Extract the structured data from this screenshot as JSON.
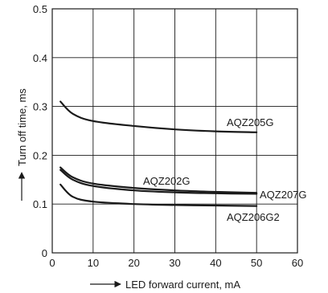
{
  "chart_data": {
    "type": "line",
    "title": "",
    "xlabel": "LED forward current, mA",
    "ylabel": "Turn off time, ms",
    "xlim": [
      0,
      60
    ],
    "ylim": [
      0,
      0.5
    ],
    "xticks": [
      0,
      10,
      20,
      30,
      40,
      50,
      60
    ],
    "yticks": [
      0,
      0.1,
      0.2,
      0.3,
      0.4,
      0.5
    ],
    "xtick_labels": [
      "0",
      "10",
      "20",
      "30",
      "40",
      "50",
      "60"
    ],
    "ytick_labels": [
      "0",
      "0.1",
      "0.2",
      "0.3",
      "0.4",
      "0.5"
    ],
    "grid": true,
    "legend": "none (series labeled inline)",
    "series": [
      {
        "name": "AQZ205G",
        "x": [
          2,
          5,
          10,
          20,
          30,
          40,
          50
        ],
        "y": [
          0.31,
          0.285,
          0.27,
          0.26,
          0.253,
          0.249,
          0.247
        ]
      },
      {
        "name": "AQZ202G",
        "x": [
          2,
          5,
          10,
          20,
          30,
          40,
          50
        ],
        "y": [
          0.175,
          0.155,
          0.142,
          0.133,
          0.128,
          0.125,
          0.123
        ]
      },
      {
        "name": "AQZ207G",
        "x": [
          2,
          5,
          10,
          20,
          30,
          40,
          50
        ],
        "y": [
          0.17,
          0.15,
          0.137,
          0.128,
          0.124,
          0.122,
          0.121
        ]
      },
      {
        "name": "AQZ206G2",
        "x": [
          2,
          5,
          10,
          20,
          30,
          40,
          50
        ],
        "y": [
          0.14,
          0.115,
          0.105,
          0.1,
          0.098,
          0.097,
          0.096
        ]
      }
    ],
    "colors": {
      "line": "#1a1a1a",
      "grid": "#1a1a1a",
      "background": "#ffffff"
    }
  }
}
